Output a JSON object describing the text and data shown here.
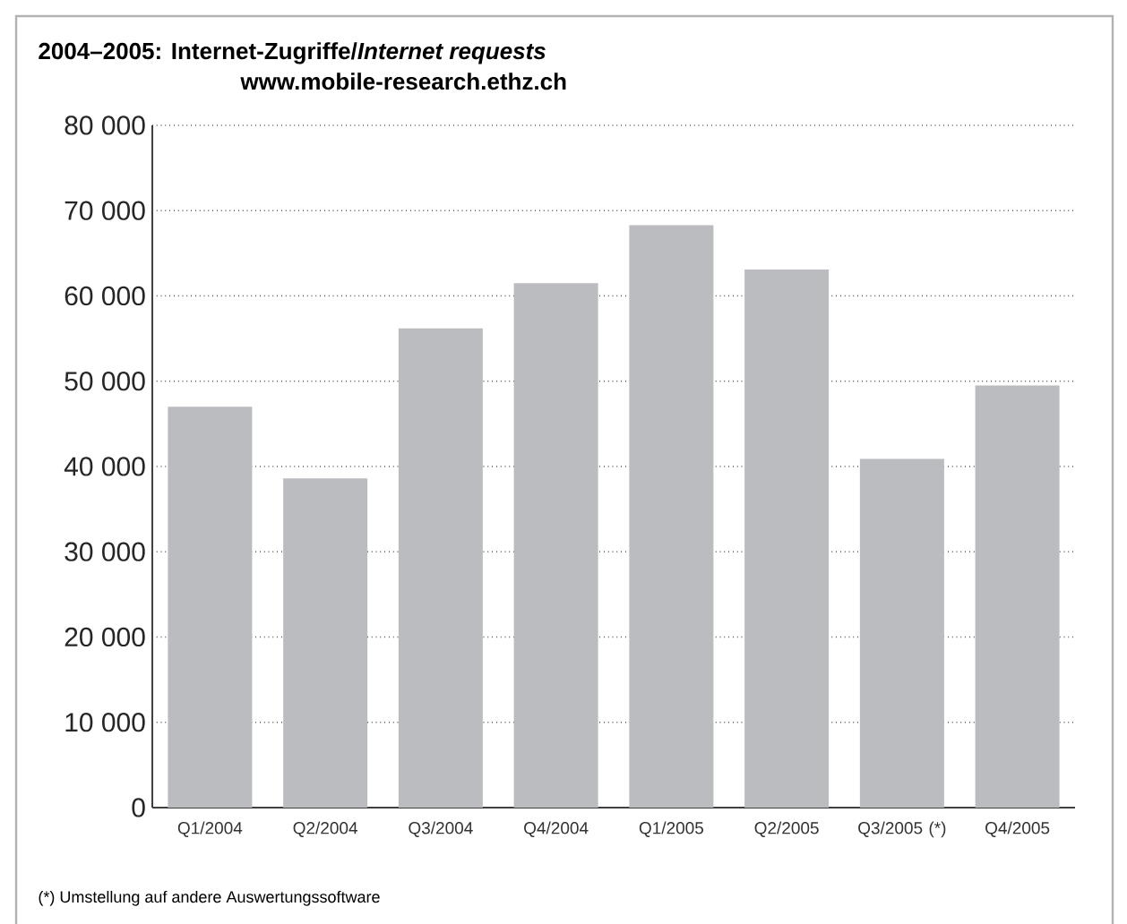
{
  "chart_data": {
    "type": "bar",
    "title": "2004–2005: Internet-Zugriffe/*Internet requests*",
    "subtitle": "www.mobile-research.ethz.ch",
    "categories": [
      "Q1/2004",
      "Q2/2004",
      "Q3/2004",
      "Q4/2004",
      "Q1/2005",
      "Q2/2005",
      "Q3/2005 (*)",
      "Q4/2005"
    ],
    "values": [
      47000,
      38600,
      56200,
      61500,
      68300,
      63100,
      40900,
      49500
    ],
    "color": "#bbbcc0",
    "ylim": [
      0,
      80000
    ],
    "yticks": [
      0,
      {
        "value": 10000,
        "label": "10 000"
      },
      {
        "value": 20000,
        "label": "20 000"
      },
      {
        "value": 30000,
        "label": "30 000"
      },
      {
        "value": 40000,
        "label": "40 000"
      },
      {
        "value": 50000,
        "label": "50 000"
      },
      {
        "value": 60000,
        "label": "60 000"
      },
      {
        "value": 70000,
        "label": "70 000"
      },
      {
        "value": 80000,
        "label": "80 000"
      }
    ],
    "grid": "y",
    "annotations": [
      "(*) Umstellung auf andere Auswertungssoftware"
    ]
  }
}
